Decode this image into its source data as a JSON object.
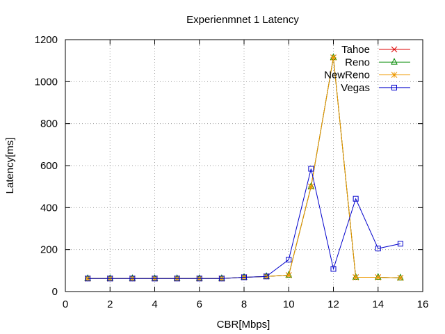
{
  "chart_data": {
    "type": "line",
    "title": "Experienmnet 1 Latency",
    "xlabel": "CBR[Mbps]",
    "ylabel": "Latency[ms]",
    "xlim": [
      0,
      16
    ],
    "ylim": [
      0,
      1200
    ],
    "xticks": [
      "0",
      "2",
      "4",
      "6",
      "8",
      "10",
      "12",
      "14",
      "16"
    ],
    "yticks": [
      "0",
      "200",
      "400",
      "600",
      "800",
      "1000",
      "1200"
    ],
    "grid": true,
    "legend_position": "top-right",
    "x": [
      1,
      2,
      3,
      4,
      5,
      6,
      7,
      8,
      9,
      10,
      11,
      12,
      13,
      14,
      15
    ],
    "series": [
      {
        "name": "Tahoe",
        "color": "#dd0000",
        "marker": "x",
        "values": [
          62,
          62,
          62,
          62,
          62,
          62,
          62,
          68,
          72,
          78,
          500,
          1115,
          68,
          68,
          65
        ]
      },
      {
        "name": "Reno",
        "color": "#008800",
        "marker": "triangle",
        "values": [
          62,
          62,
          62,
          62,
          62,
          62,
          62,
          68,
          72,
          78,
          500,
          1115,
          68,
          68,
          65
        ]
      },
      {
        "name": "NewReno",
        "color": "#ee9900",
        "marker": "asterisk",
        "values": [
          62,
          62,
          62,
          62,
          62,
          62,
          62,
          68,
          72,
          78,
          500,
          1115,
          68,
          68,
          65
        ]
      },
      {
        "name": "Vegas",
        "color": "#0000cc",
        "marker": "square",
        "values": [
          62,
          62,
          62,
          62,
          62,
          62,
          62,
          68,
          72,
          152,
          585,
          108,
          442,
          205,
          228
        ]
      }
    ]
  }
}
